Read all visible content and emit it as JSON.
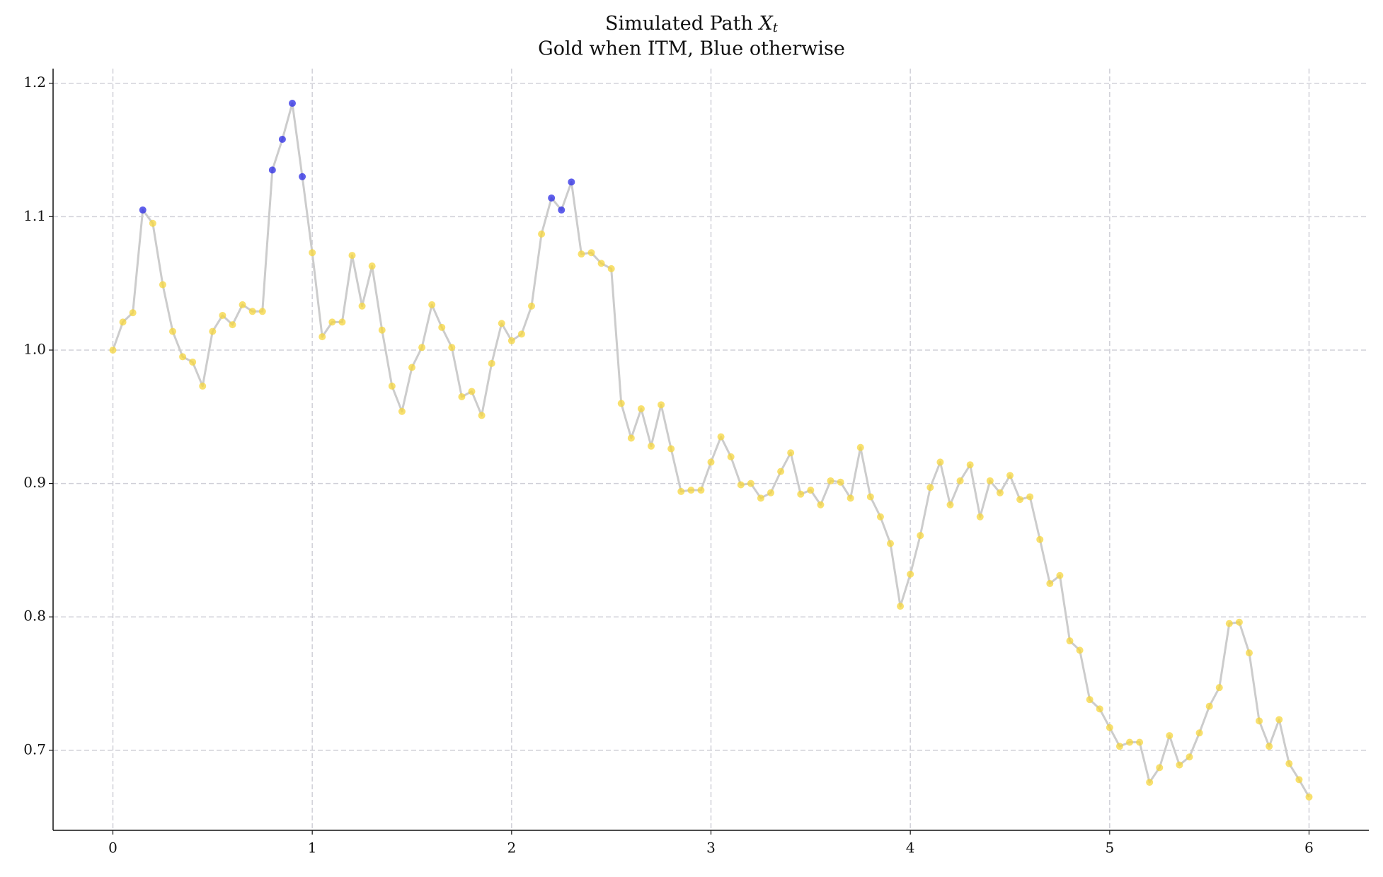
{
  "chart_data": {
    "type": "line",
    "title": [
      "Simulated Path ",
      "X",
      "t"
    ],
    "subtitle": "Gold when ITM, Blue otherwise",
    "x": [
      0,
      0.05,
      0.1,
      0.15,
      0.2,
      0.25,
      0.3,
      0.35,
      0.4,
      0.45,
      0.5,
      0.55,
      0.6,
      0.65,
      0.7,
      0.75,
      0.8,
      0.85,
      0.9,
      0.95,
      1,
      1.05,
      1.1,
      1.15,
      1.2,
      1.25,
      1.3,
      1.35,
      1.4,
      1.45,
      1.5,
      1.55,
      1.6,
      1.65,
      1.7,
      1.75,
      1.8,
      1.85,
      1.9,
      1.95,
      2,
      2.05,
      2.1,
      2.15,
      2.2,
      2.25,
      2.3,
      2.35,
      2.4,
      2.45,
      2.5,
      2.55,
      2.6,
      2.65,
      2.7,
      2.75,
      2.8,
      2.85,
      2.9,
      2.95,
      3,
      3.05,
      3.1,
      3.15,
      3.2,
      3.25,
      3.3,
      3.35,
      3.4,
      3.45,
      3.5,
      3.55,
      3.6,
      3.65,
      3.7,
      3.75,
      3.8,
      3.85,
      3.9,
      3.95,
      4,
      4.05,
      4.1,
      4.15,
      4.2,
      4.25,
      4.3,
      4.35,
      4.4,
      4.45,
      4.5,
      4.55,
      4.6,
      4.65,
      4.7,
      4.75,
      4.8,
      4.85,
      4.9,
      4.95,
      5,
      5.05,
      5.1,
      5.15,
      5.2,
      5.25,
      5.3,
      5.35,
      5.4,
      5.45,
      5.5,
      5.55,
      5.6,
      5.65,
      5.7,
      5.75,
      5.8,
      5.85,
      5.9,
      5.95,
      6
    ],
    "values": [
      1.0,
      1.021,
      1.028,
      1.105,
      1.095,
      1.049,
      1.014,
      0.995,
      0.991,
      0.973,
      1.014,
      1.026,
      1.019,
      1.034,
      1.029,
      1.029,
      1.135,
      1.158,
      1.185,
      1.13,
      1.073,
      1.01,
      1.021,
      1.021,
      1.071,
      1.033,
      1.063,
      1.015,
      0.973,
      0.954,
      0.987,
      1.002,
      1.034,
      1.017,
      1.002,
      0.965,
      0.969,
      0.951,
      0.99,
      1.02,
      1.007,
      1.012,
      1.033,
      1.087,
      1.114,
      1.105,
      1.126,
      1.072,
      1.073,
      1.065,
      1.061,
      0.96,
      0.934,
      0.956,
      0.928,
      0.959,
      0.926,
      0.894,
      0.895,
      0.895,
      0.916,
      0.935,
      0.92,
      0.899,
      0.9,
      0.889,
      0.893,
      0.909,
      0.923,
      0.892,
      0.895,
      0.884,
      0.902,
      0.901,
      0.889,
      0.927,
      0.89,
      0.875,
      0.855,
      0.808,
      0.832,
      0.861,
      0.897,
      0.916,
      0.884,
      0.902,
      0.914,
      0.875,
      0.902,
      0.893,
      0.906,
      0.888,
      0.89,
      0.858,
      0.825,
      0.831,
      0.782,
      0.775,
      0.738,
      0.731,
      0.717,
      0.703,
      0.706,
      0.706,
      0.676,
      0.687,
      0.711,
      0.689,
      0.695,
      0.713,
      0.733,
      0.747,
      0.795,
      0.796,
      0.773,
      0.722,
      0.703,
      0.723,
      0.69,
      0.678,
      0.665
    ],
    "point_colors": [
      "#f5d63d",
      "#f5d63d",
      "#f5d63d",
      "#2a2ae6",
      "#f5d63d",
      "#f5d63d",
      "#f5d63d",
      "#f5d63d",
      "#f5d63d",
      "#f5d63d",
      "#f5d63d",
      "#f5d63d",
      "#f5d63d",
      "#f5d63d",
      "#f5d63d",
      "#f5d63d",
      "#2a2ae6",
      "#2a2ae6",
      "#2a2ae6",
      "#2a2ae6",
      "#f5d63d",
      "#f5d63d",
      "#f5d63d",
      "#f5d63d",
      "#f5d63d",
      "#f5d63d",
      "#f5d63d",
      "#f5d63d",
      "#f5d63d",
      "#f5d63d",
      "#f5d63d",
      "#f5d63d",
      "#f5d63d",
      "#f5d63d",
      "#f5d63d",
      "#f5d63d",
      "#f5d63d",
      "#f5d63d",
      "#f5d63d",
      "#f5d63d",
      "#f5d63d",
      "#f5d63d",
      "#f5d63d",
      "#f5d63d",
      "#2a2ae6",
      "#2a2ae6",
      "#2a2ae6",
      "#f5d63d",
      "#f5d63d",
      "#f5d63d",
      "#f5d63d",
      "#f5d63d",
      "#f5d63d",
      "#f5d63d",
      "#f5d63d",
      "#f5d63d",
      "#f5d63d",
      "#f5d63d",
      "#f5d63d",
      "#f5d63d",
      "#f5d63d",
      "#f5d63d",
      "#f5d63d",
      "#f5d63d",
      "#f5d63d",
      "#f5d63d",
      "#f5d63d",
      "#f5d63d",
      "#f5d63d",
      "#f5d63d",
      "#f5d63d",
      "#f5d63d",
      "#f5d63d",
      "#f5d63d",
      "#f5d63d",
      "#f5d63d",
      "#f5d63d",
      "#f5d63d",
      "#f5d63d",
      "#f5d63d",
      "#f5d63d",
      "#f5d63d",
      "#f5d63d",
      "#f5d63d",
      "#f5d63d",
      "#f5d63d",
      "#f5d63d",
      "#f5d63d",
      "#f5d63d",
      "#f5d63d",
      "#f5d63d",
      "#f5d63d",
      "#f5d63d",
      "#f5d63d",
      "#f5d63d",
      "#f5d63d",
      "#f5d63d",
      "#f5d63d",
      "#f5d63d",
      "#f5d63d",
      "#f5d63d",
      "#f5d63d",
      "#f5d63d",
      "#f5d63d",
      "#f5d63d",
      "#f5d63d",
      "#f5d63d",
      "#f5d63d",
      "#f5d63d",
      "#f5d63d",
      "#f5d63d",
      "#f5d63d",
      "#f5d63d",
      "#f5d63d",
      "#f5d63d",
      "#f5d63d",
      "#f5d63d",
      "#f5d63d",
      "#f5d63d",
      "#f5d63d",
      "#f5d63d"
    ],
    "line_color": "#cccccc",
    "xlim": [
      -0.3,
      6.3
    ],
    "ylim": [
      0.64,
      1.211
    ],
    "xticks": [
      0,
      1,
      2,
      3,
      4,
      5,
      6
    ],
    "yticks": [
      0.7,
      0.8,
      0.9,
      {
        "value": 1,
        "label": "1.0"
      },
      1.1,
      1.2
    ],
    "grid": true
  }
}
